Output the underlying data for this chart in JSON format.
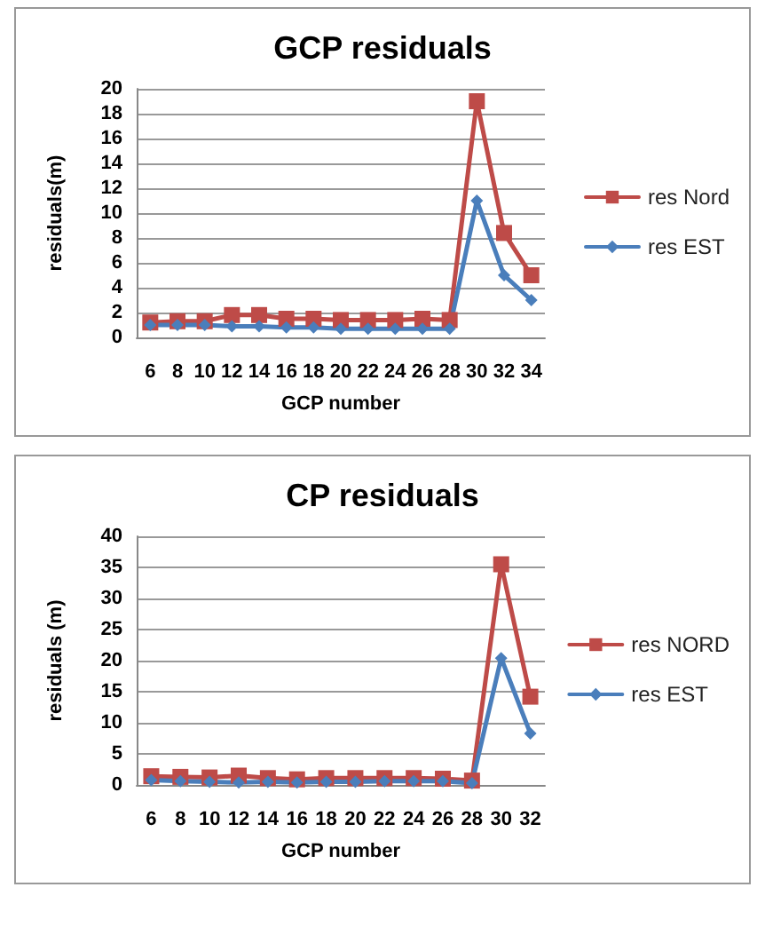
{
  "chart_data": [
    {
      "type": "line",
      "title": "GCP residuals",
      "xlabel": "GCP number",
      "ylabel": "residuals(m)",
      "categories": [
        "6",
        "8",
        "10",
        "12",
        "14",
        "16",
        "18",
        "20",
        "22",
        "24",
        "26",
        "28",
        "30",
        "32",
        "34"
      ],
      "series": [
        {
          "name": "res Nord",
          "color": "#be4b48",
          "marker": "square",
          "values": [
            1.2,
            1.3,
            1.3,
            1.8,
            1.8,
            1.5,
            1.5,
            1.4,
            1.4,
            1.4,
            1.5,
            1.4,
            19,
            8.4,
            5
          ]
        },
        {
          "name": "res EST",
          "color": "#4a7ebb",
          "marker": "diamond",
          "values": [
            1,
            1,
            1,
            0.9,
            0.9,
            0.8,
            0.8,
            0.7,
            0.7,
            0.7,
            0.7,
            0.7,
            11,
            5,
            3
          ]
        }
      ],
      "ylim": [
        0,
        20
      ],
      "yticks": [
        0,
        2,
        4,
        6,
        8,
        10,
        12,
        14,
        16,
        18,
        20
      ],
      "grid": "y",
      "legend": "right"
    },
    {
      "type": "line",
      "title": "CP residuals",
      "xlabel": "GCP number",
      "ylabel": "residuals (m)",
      "categories": [
        "6",
        "8",
        "10",
        "12",
        "14",
        "16",
        "18",
        "20",
        "22",
        "24",
        "26",
        "28",
        "30",
        "32"
      ],
      "series": [
        {
          "name": "res NORD",
          "color": "#be4b48",
          "marker": "square",
          "values": [
            1.4,
            1.3,
            1.2,
            1.5,
            1.1,
            0.9,
            1.1,
            1.1,
            1.1,
            1.1,
            1,
            0.7,
            35.5,
            14.2
          ]
        },
        {
          "name": "res EST",
          "color": "#4a7ebb",
          "marker": "diamond",
          "values": [
            0.8,
            0.6,
            0.5,
            0.4,
            0.5,
            0.4,
            0.5,
            0.5,
            0.6,
            0.6,
            0.6,
            0.3,
            20.4,
            8.3
          ]
        }
      ],
      "ylim": [
        0,
        40
      ],
      "yticks": [
        0,
        5,
        10,
        15,
        20,
        25,
        30,
        35,
        40
      ],
      "grid": "y",
      "legend": "right"
    }
  ]
}
